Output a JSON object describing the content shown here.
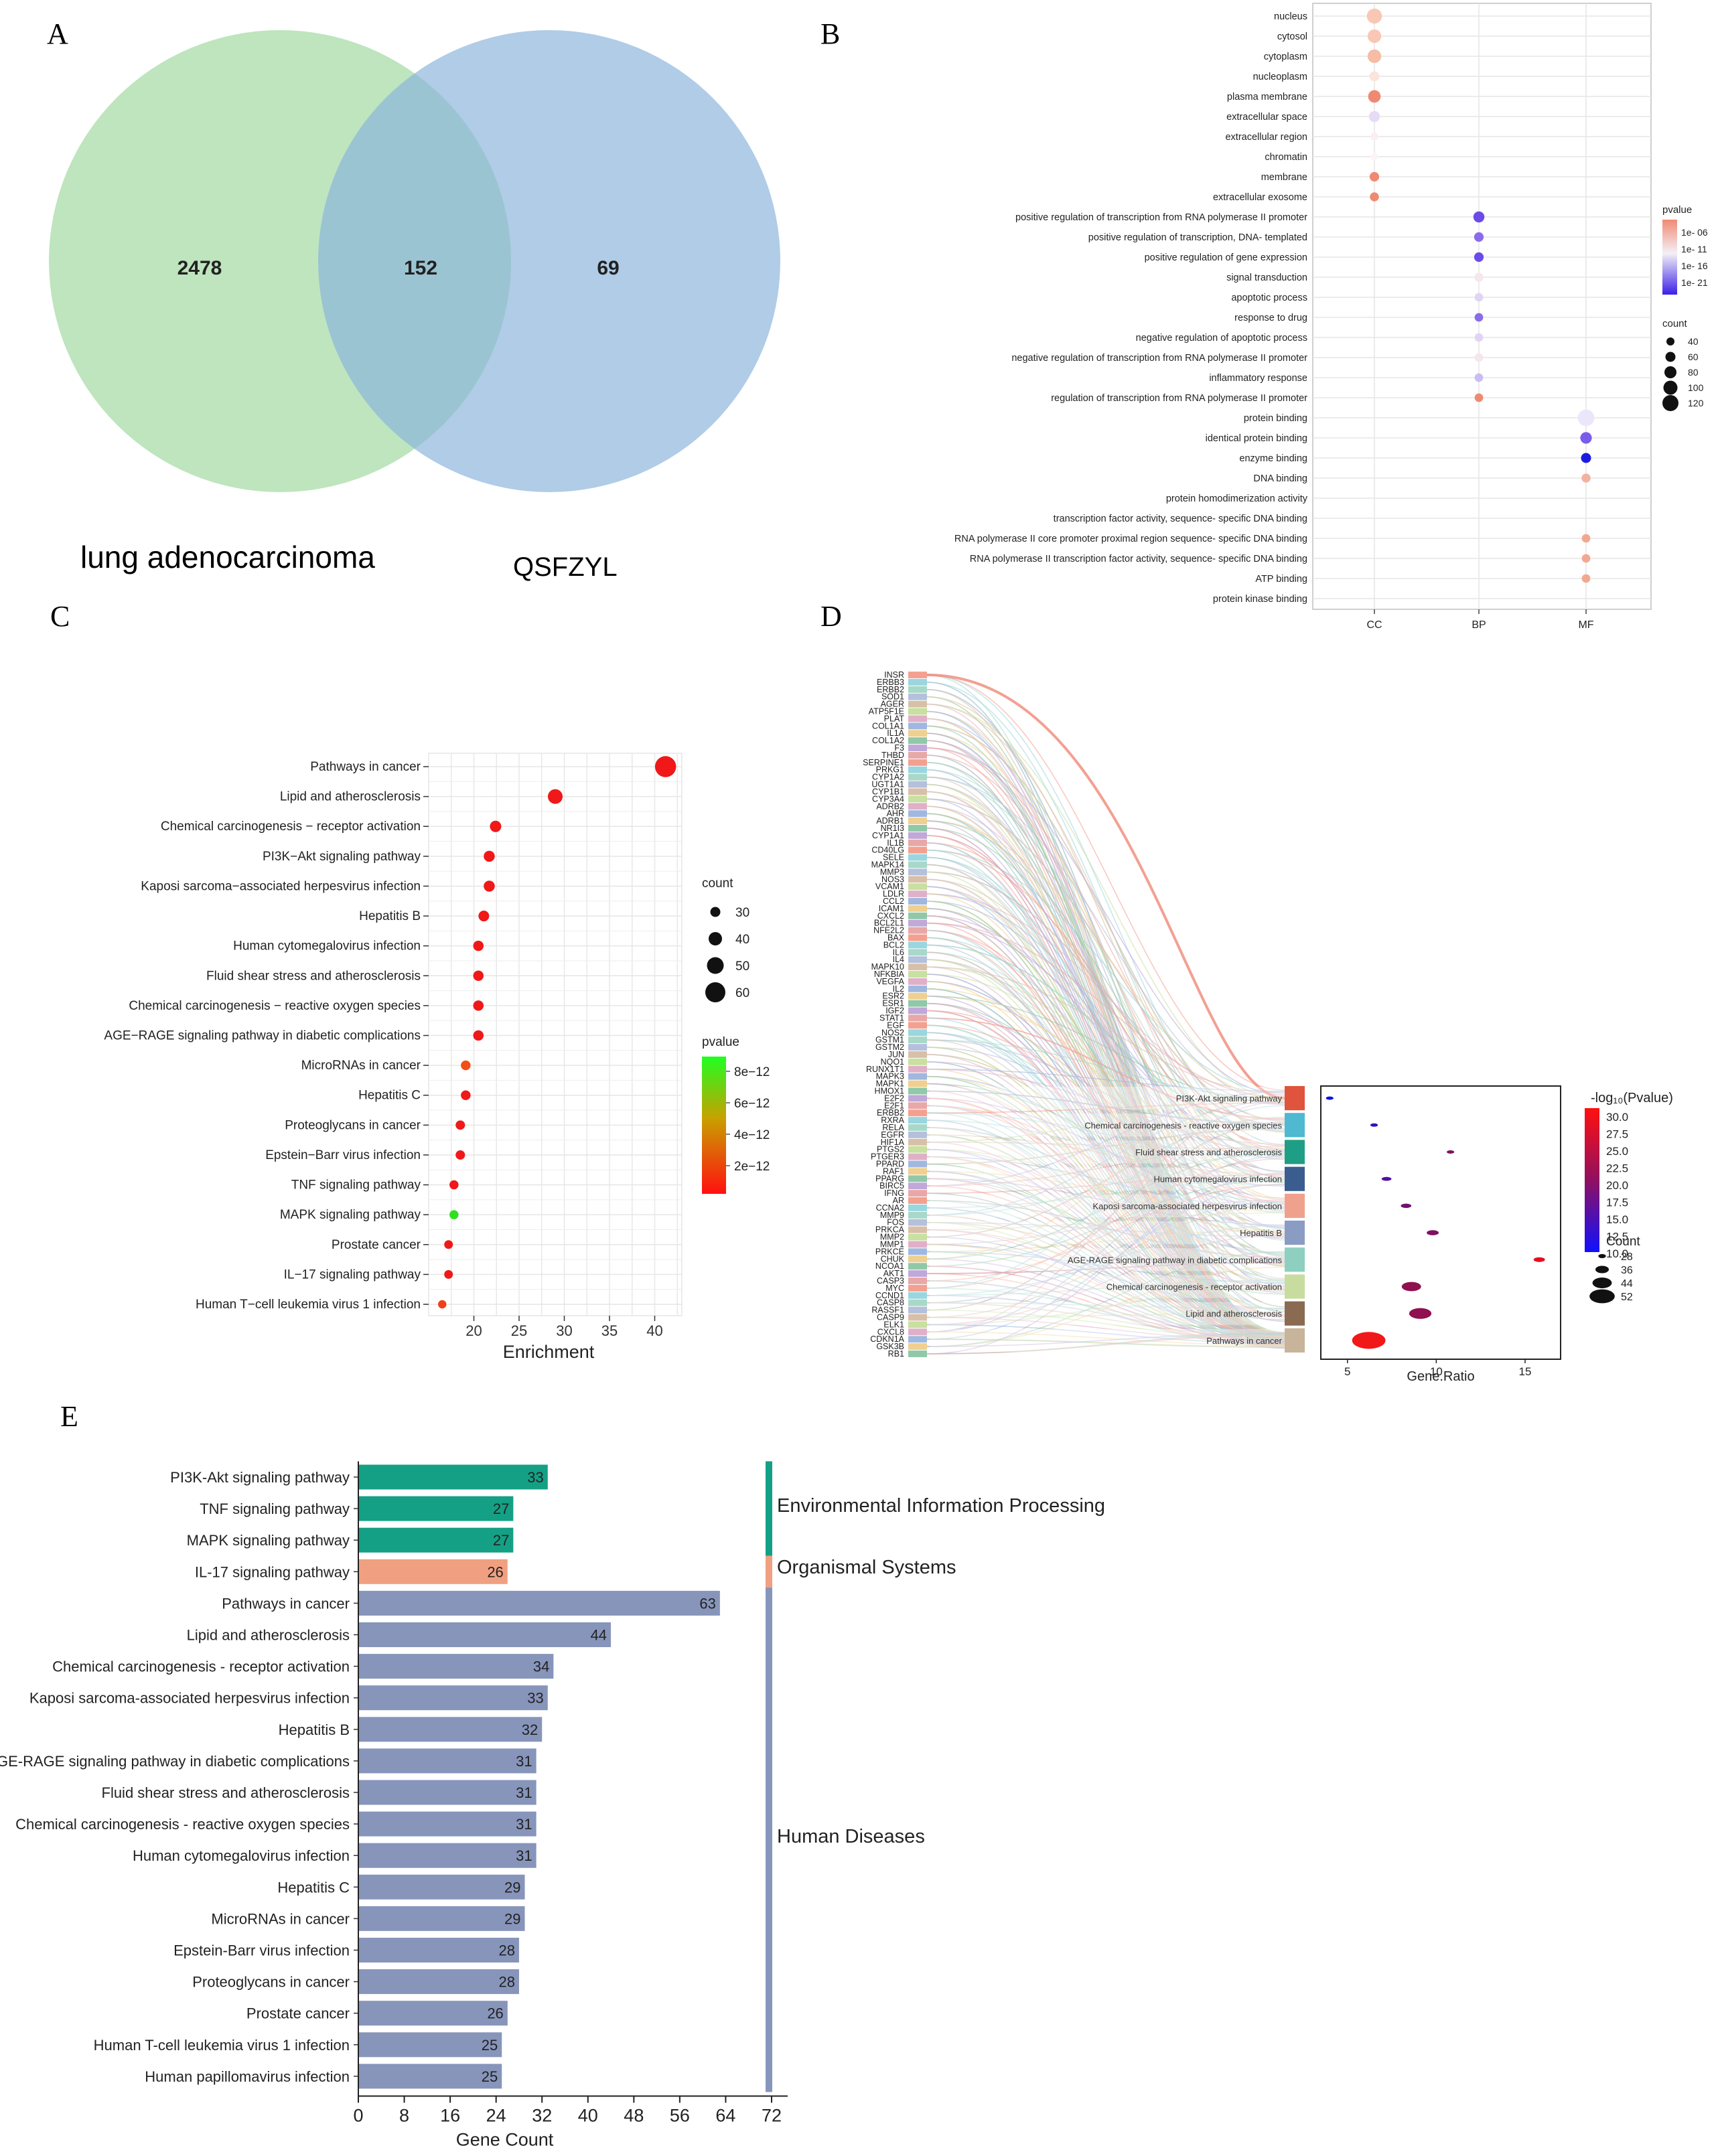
{
  "figure": {
    "panel_labels": [
      "A",
      "B",
      "C",
      "D",
      "E"
    ]
  },
  "colors": {
    "venn_left": "#a8dca8",
    "venn_right": "#8ab4dc",
    "venn_overlap": "#8fb9b6",
    "grid_bg": "#ffffff",
    "grid_line": "#e6e6e6",
    "env": "#14a085",
    "org": "#f0a080",
    "hum": "#8795bb"
  },
  "chart_data": [
    {
      "panel": "A",
      "type": "venn",
      "sets": [
        {
          "name": "lung adenocarcinoma",
          "only": 2478
        },
        {
          "name": "QSFZYL",
          "only": 69
        }
      ],
      "intersection": 152
    },
    {
      "panel": "B",
      "type": "scatter",
      "title": "",
      "categories": [
        "CC",
        "BP",
        "MF"
      ],
      "terms": [
        {
          "term": "nucleus",
          "cat": "CC",
          "count": 110,
          "color": "#f8c8b4"
        },
        {
          "term": "cytosol",
          "cat": "CC",
          "count": 95,
          "color": "#f8c8b4"
        },
        {
          "term": "cytoplasm",
          "cat": "CC",
          "count": 95,
          "color": "#f6bca4"
        },
        {
          "term": "nucleoplasm",
          "cat": "CC",
          "count": 60,
          "color": "#fbe4dc"
        },
        {
          "term": "plasma membrane",
          "cat": "CC",
          "count": 85,
          "color": "#ee8a72"
        },
        {
          "term": "extracellular space",
          "cat": "CC",
          "count": 70,
          "color": "#e6dcf6"
        },
        {
          "term": "extracellular region",
          "cat": "CC",
          "count": 40,
          "color": "#fbeff0"
        },
        {
          "term": "chromatin",
          "cat": "CC",
          "count": 30,
          "color": "#fdf4f4"
        },
        {
          "term": "membrane",
          "cat": "CC",
          "count": 55,
          "color": "#ee8a72"
        },
        {
          "term": "extracellular exosome",
          "cat": "CC",
          "count": 50,
          "color": "#ee8a72"
        },
        {
          "term": "positive regulation of transcription from RNA polymerase II promoter",
          "cat": "BP",
          "count": 70,
          "color": "#6a4be8"
        },
        {
          "term": "positive regulation of transcription, DNA- templated",
          "cat": "BP",
          "count": 55,
          "color": "#8a6cea"
        },
        {
          "term": "positive regulation of gene expression",
          "cat": "BP",
          "count": 55,
          "color": "#6a4be8"
        },
        {
          "term": "signal transduction",
          "cat": "BP",
          "count": 50,
          "color": "#f6e6ee"
        },
        {
          "term": "apoptotic process",
          "cat": "BP",
          "count": 45,
          "color": "#e0d4f6"
        },
        {
          "term": "response to drug",
          "cat": "BP",
          "count": 45,
          "color": "#8a6cea"
        },
        {
          "term": "negative regulation of apoptotic process",
          "cat": "BP",
          "count": 45,
          "color": "#e0d4f6"
        },
        {
          "term": "negative regulation of transcription from RNA polymerase II promoter",
          "cat": "BP",
          "count": 45,
          "color": "#f6e6ee"
        },
        {
          "term": "inflammatory response",
          "cat": "BP",
          "count": 45,
          "color": "#cbbdf2"
        },
        {
          "term": "regulation of transcription from RNA polymerase II promoter",
          "cat": "BP",
          "count": 45,
          "color": "#ee8a72"
        },
        {
          "term": "protein binding",
          "cat": "MF",
          "count": 125,
          "color": "#ece6fb"
        },
        {
          "term": "identical protein binding",
          "cat": "MF",
          "count": 75,
          "color": "#7a5cea"
        },
        {
          "term": "enzyme binding",
          "cat": "MF",
          "count": 60,
          "color": "#1c1ce0"
        },
        {
          "term": "DNA binding",
          "cat": "MF",
          "count": 50,
          "color": "#f2b2a0"
        },
        {
          "term": "protein homodimerization activity",
          "cat": "MF",
          "count": 0,
          "color": "#ffffff"
        },
        {
          "term": "transcription factor activity, sequence- specific DNA binding",
          "cat": "MF",
          "count": 0,
          "color": "#ffffff"
        },
        {
          "term": "RNA polymerase II core promoter proximal region sequence- specific DNA binding",
          "cat": "MF",
          "count": 45,
          "color": "#f2a890"
        },
        {
          "term": "RNA polymerase II transcription factor activity, sequence- specific DNA binding",
          "cat": "MF",
          "count": 45,
          "color": "#f2a890"
        },
        {
          "term": "ATP binding",
          "cat": "MF",
          "count": 45,
          "color": "#f2a890"
        },
        {
          "term": "protein kinase binding",
          "cat": "MF",
          "count": 0,
          "color": "#ffffff"
        }
      ],
      "legend_pvalue": {
        "title": "pvalue",
        "labels": [
          "1e- 06",
          "1e- 11",
          "1e- 16",
          "1e- 21"
        ]
      },
      "legend_count": {
        "title": "count",
        "labels": [
          "40",
          "60",
          "80",
          "100",
          "120"
        ],
        "values": [
          40,
          60,
          80,
          100,
          120
        ]
      }
    },
    {
      "panel": "C",
      "type": "scatter",
      "xlabel": "Enrichment",
      "xlim": [
        15,
        43
      ],
      "xticks": [
        20,
        25,
        30,
        35,
        40
      ],
      "points": [
        {
          "term": "Pathways in cancer",
          "x": 41.2,
          "count": 63,
          "color": "#f01818"
        },
        {
          "term": "Lipid and atherosclerosis",
          "x": 29.0,
          "count": 44,
          "color": "#f01818"
        },
        {
          "term": "Chemical carcinogenesis − receptor activation",
          "x": 22.4,
          "count": 34,
          "color": "#f01818"
        },
        {
          "term": "PI3K−Akt signaling pathway",
          "x": 21.7,
          "count": 33,
          "color": "#f01818"
        },
        {
          "term": "Kaposi sarcoma−associated herpesvirus infection",
          "x": 21.7,
          "count": 33,
          "color": "#f01818"
        },
        {
          "term": "Hepatitis B",
          "x": 21.1,
          "count": 32,
          "color": "#f01818"
        },
        {
          "term": "Human cytomegalovirus infection",
          "x": 20.5,
          "count": 31,
          "color": "#f01818"
        },
        {
          "term": "Fluid shear stress and atherosclerosis",
          "x": 20.5,
          "count": 31,
          "color": "#f01818"
        },
        {
          "term": "Chemical carcinogenesis − reactive oxygen species",
          "x": 20.5,
          "count": 31,
          "color": "#f01818"
        },
        {
          "term": "AGE−RAGE signaling pathway in diabetic complications",
          "x": 20.5,
          "count": 31,
          "color": "#f01818"
        },
        {
          "term": "MicroRNAs in cancer",
          "x": 19.1,
          "count": 29,
          "color": "#f05018"
        },
        {
          "term": "Hepatitis C",
          "x": 19.1,
          "count": 29,
          "color": "#f01818"
        },
        {
          "term": "Proteoglycans in cancer",
          "x": 18.5,
          "count": 28,
          "color": "#f01818"
        },
        {
          "term": "Epstein−Barr virus infection",
          "x": 18.5,
          "count": 28,
          "color": "#f01818"
        },
        {
          "term": "TNF signaling pathway",
          "x": 17.8,
          "count": 27,
          "color": "#f01818"
        },
        {
          "term": "MAPK signaling pathway",
          "x": 17.8,
          "count": 27,
          "color": "#30e020"
        },
        {
          "term": "Prostate cancer",
          "x": 17.2,
          "count": 26,
          "color": "#f01818"
        },
        {
          "term": "IL−17 signaling pathway",
          "x": 17.2,
          "count": 26,
          "color": "#f01818"
        },
        {
          "term": "Human T−cell leukemia virus 1 infection",
          "x": 16.5,
          "count": 25,
          "color": "#f04018"
        }
      ],
      "legend_count": {
        "title": "count",
        "labels": [
          "30",
          "40",
          "50",
          "60"
        ],
        "values": [
          30,
          40,
          50,
          60
        ]
      },
      "legend_pvalue": {
        "title": "pvalue",
        "labels": [
          "8e−12",
          "6e−12",
          "4e−12",
          "2e−12"
        ]
      }
    },
    {
      "panel": "D",
      "type": "sankey",
      "genes": [
        "INSR",
        "ERBB3",
        "ERBB2",
        "SOD1",
        "AGER",
        "ATP5F1E",
        "PLAT",
        "COL1A1",
        "IL1A",
        "COL1A2",
        "F3",
        "THBD",
        "SERPINE1",
        "PRKG1",
        "CYP1A2",
        "UGT1A1",
        "CYP1B1",
        "CYP3A4",
        "ADRB2",
        "AHR",
        "ADRB1",
        "NR1I3",
        "CYP1A1",
        "IL1B",
        "CD40LG",
        "SELE",
        "MAPK14",
        "MMP3",
        "NOS3",
        "VCAM1",
        "LDLR",
        "CCL2",
        "ICAM1",
        "CXCL2",
        "BCL2L1",
        "NFE2L2",
        "BAX",
        "BCL2",
        "IL6",
        "IL4",
        "MAPK10",
        "NFKBIA",
        "VEGFA",
        "IL2",
        "ESR2",
        "ESR1",
        "IGF2",
        "STAT1",
        "EGF",
        "NOS2",
        "GSTM1",
        "GSTM2",
        "JUN",
        "NQO1",
        "RUNX1T1",
        "MAPK3",
        "MAPK1",
        "HMOX1",
        "E2F2",
        "E2F1",
        "ERBB2",
        "RXRA",
        "RELA",
        "EGFR",
        "HIF1A",
        "PTGS2",
        "PTGER3",
        "PPARD",
        "RAF1",
        "PPARG",
        "BIRC5",
        "IFNG",
        "AR",
        "CCNA2",
        "MMP9",
        "FOS",
        "PRKCA",
        "MMP2",
        "MMP1",
        "PRKCE",
        "CHUK",
        "NCOA1",
        "AKT1",
        "CASP3",
        "MYC",
        "CCND1",
        "CASP8",
        "RASSF1",
        "CASP9",
        "ELK1",
        "CXCL8",
        "CDKN1A",
        "GSK3B",
        "RB1"
      ],
      "pathways": [
        {
          "name": "PI3K-Akt signaling pathway",
          "color": "#e0533d"
        },
        {
          "name": "Chemical carcinogenesis - reactive oxygen species",
          "color": "#4eb9d0"
        },
        {
          "name": "Fluid shear stress and atherosclerosis",
          "color": "#1f9e86"
        },
        {
          "name": "Human cytomegalovirus infection",
          "color": "#3b5c8e"
        },
        {
          "name": "Kaposi sarcoma-associated herpesvirus infection",
          "color": "#f0a18e"
        },
        {
          "name": "Hepatitis B",
          "color": "#8a9cc4"
        },
        {
          "name": "AGE-RAGE signaling pathway in diabetic complications",
          "color": "#8ecfc0"
        },
        {
          "name": "Chemical carcinogenesis - receptor activation",
          "color": "#c8dca0"
        },
        {
          "name": "Lipid and atherosclerosis",
          "color": "#8b6a52"
        },
        {
          "name": "Pathways in cancer",
          "color": "#c8b49a"
        }
      ],
      "dot": {
        "xlabel": "Gene.Ratio",
        "xlim": [
          3.5,
          17
        ],
        "xticks": [
          5,
          10,
          15
        ],
        "points": [
          {
            "x": 4.0,
            "count": 28,
            "color": "#1010e0"
          },
          {
            "x": 6.5,
            "count": 28,
            "color": "#3010c0"
          },
          {
            "x": 10.8,
            "count": 28,
            "color": "#801060"
          },
          {
            "x": 7.2,
            "count": 31,
            "color": "#5010a0"
          },
          {
            "x": 8.3,
            "count": 32,
            "color": "#701070"
          },
          {
            "x": 9.8,
            "count": 34,
            "color": "#801060"
          },
          {
            "x": 15.8,
            "count": 33,
            "color": "#e01020"
          },
          {
            "x": 8.6,
            "count": 44,
            "color": "#901050"
          },
          {
            "x": 9.1,
            "count": 48,
            "color": "#901050"
          },
          {
            "x": 6.2,
            "count": 63,
            "color": "#f01818"
          }
        ],
        "legend_color": {
          "title": "-log₁₀(Pvalue)",
          "labels": [
            "30.0",
            "27.5",
            "25.0",
            "22.5",
            "20.0",
            "17.5",
            "15.0",
            "12.5",
            "10.0"
          ]
        },
        "legend_count": {
          "title": "Count",
          "labels": [
            "28",
            "36",
            "44",
            "52"
          ],
          "values": [
            28,
            36,
            44,
            52
          ]
        }
      }
    },
    {
      "panel": "E",
      "type": "bar",
      "xlabel": "Gene Count",
      "xlim": [
        0,
        72
      ],
      "xticks": [
        0,
        8,
        16,
        24,
        32,
        40,
        48,
        56,
        64,
        72
      ],
      "bars": [
        {
          "term": "PI3K-Akt signaling pathway",
          "value": 33,
          "group": "env"
        },
        {
          "term": "TNF signaling pathway",
          "value": 27,
          "group": "env"
        },
        {
          "term": "MAPK signaling pathway",
          "value": 27,
          "group": "env"
        },
        {
          "term": "IL-17 signaling pathway",
          "value": 26,
          "group": "org"
        },
        {
          "term": "Pathways in cancer",
          "value": 63,
          "group": "hum"
        },
        {
          "term": "Lipid and atherosclerosis",
          "value": 44,
          "group": "hum"
        },
        {
          "term": "Chemical carcinogenesis - receptor activation",
          "value": 34,
          "group": "hum"
        },
        {
          "term": "Kaposi sarcoma-associated herpesvirus infection",
          "value": 33,
          "group": "hum"
        },
        {
          "term": "Hepatitis B",
          "value": 32,
          "group": "hum"
        },
        {
          "term": "AGE-RAGE signaling pathway in diabetic complications",
          "value": 31,
          "group": "hum"
        },
        {
          "term": "Fluid shear stress and atherosclerosis",
          "value": 31,
          "group": "hum"
        },
        {
          "term": "Chemical carcinogenesis - reactive oxygen species",
          "value": 31,
          "group": "hum"
        },
        {
          "term": "Human cytomegalovirus infection",
          "value": 31,
          "group": "hum"
        },
        {
          "term": "Hepatitis C",
          "value": 29,
          "group": "hum"
        },
        {
          "term": "MicroRNAs in cancer",
          "value": 29,
          "group": "hum"
        },
        {
          "term": "Epstein-Barr virus infection",
          "value": 28,
          "group": "hum"
        },
        {
          "term": "Proteoglycans in cancer",
          "value": 28,
          "group": "hum"
        },
        {
          "term": "Prostate cancer",
          "value": 26,
          "group": "hum"
        },
        {
          "term": "Human T-cell leukemia virus 1 infection",
          "value": 25,
          "group": "hum"
        },
        {
          "term": "Human papillomavirus infection",
          "value": 25,
          "group": "hum"
        }
      ],
      "groups": [
        {
          "key": "env",
          "name": "Environmental Information Processing"
        },
        {
          "key": "org",
          "name": "Organismal Systems"
        },
        {
          "key": "hum",
          "name": "Human Diseases"
        }
      ]
    }
  ]
}
